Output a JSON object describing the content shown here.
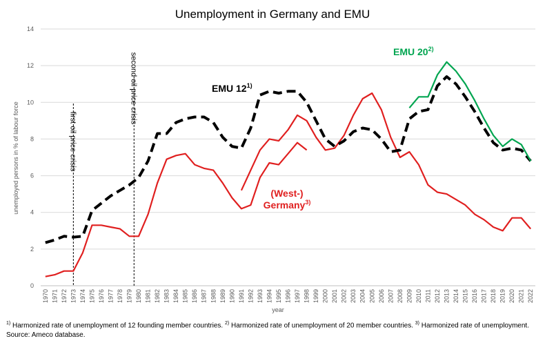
{
  "chart_data": {
    "type": "line",
    "title": "Unemployment in Germany and EMU",
    "xlabel": "year",
    "ylabel": "unemployed persons in % of labour force",
    "xlim": [
      1970,
      2022
    ],
    "ylim": [
      0,
      14
    ],
    "yticks": [
      "0",
      "2",
      "4",
      "6",
      "8",
      "10",
      "12",
      "14"
    ],
    "grid": true,
    "series": [
      {
        "name": "EMU 12",
        "color": "#000000",
        "style": "dashed",
        "x": [
          1970,
          1971,
          1972,
          1973,
          1974,
          1975,
          1976,
          1977,
          1978,
          1979,
          1980,
          1981,
          1982,
          1983,
          1984,
          1985,
          1986,
          1987,
          1988,
          1989,
          1990,
          1991,
          1992,
          1993,
          1994,
          1995,
          1996,
          1997,
          1998,
          1999,
          2000,
          2001,
          2002,
          2003,
          2004,
          2005,
          2006,
          2007,
          2008,
          2009,
          2010,
          2011,
          2012,
          2013,
          2014,
          2015,
          2016,
          2017,
          2018,
          2019,
          2020,
          2021,
          2022
        ],
        "values": [
          2.35,
          2.5,
          2.7,
          2.65,
          2.7,
          4.1,
          4.5,
          4.9,
          5.2,
          5.5,
          5.9,
          6.8,
          8.3,
          8.3,
          8.9,
          9.1,
          9.2,
          9.2,
          8.9,
          8.1,
          7.6,
          7.5,
          8.6,
          10.4,
          10.6,
          10.5,
          10.6,
          10.6,
          10.0,
          9.0,
          8.0,
          7.6,
          7.9,
          8.4,
          8.6,
          8.5,
          8.0,
          7.3,
          7.4,
          9.1,
          9.5,
          9.6,
          10.9,
          11.4,
          11.0,
          10.3,
          9.5,
          8.6,
          7.8,
          7.4,
          7.5,
          7.4,
          6.8
        ]
      },
      {
        "name": "EMU 20",
        "color": "#00a550",
        "style": "solid",
        "x": [
          2009,
          2010,
          2011,
          2012,
          2013,
          2014,
          2015,
          2016,
          2017,
          2018,
          2019,
          2020,
          2021,
          2022
        ],
        "values": [
          9.7,
          10.3,
          10.3,
          11.5,
          12.2,
          11.7,
          11.0,
          10.1,
          9.1,
          8.2,
          7.6,
          8.0,
          7.7,
          6.8
        ]
      },
      {
        "name": "(West-) Germany",
        "color": "#e01f1f",
        "style": "solid",
        "x": [
          1970,
          1971,
          1972,
          1973,
          1974,
          1975,
          1976,
          1977,
          1978,
          1979,
          1980,
          1981,
          1982,
          1983,
          1984,
          1985,
          1986,
          1987,
          1988,
          1989,
          1990,
          1991,
          1992,
          1993,
          1994,
          1995,
          1996,
          1997,
          1998
        ],
        "values": [
          0.5,
          0.6,
          0.8,
          0.8,
          1.8,
          3.3,
          3.3,
          3.2,
          3.1,
          2.7,
          2.7,
          3.9,
          5.6,
          6.9,
          7.1,
          7.2,
          6.6,
          6.4,
          6.3,
          5.6,
          4.8,
          4.2,
          4.4,
          5.9,
          6.7,
          6.6,
          7.2,
          7.8,
          7.4
        ]
      },
      {
        "name": "Germany",
        "color": "#e01f1f",
        "style": "solid",
        "x": [
          1991,
          1992,
          1993,
          1994,
          1995,
          1996,
          1997,
          1998,
          1999,
          2000,
          2001,
          2002,
          2003,
          2004,
          2005,
          2006,
          2007,
          2008,
          2009,
          2010,
          2011,
          2012,
          2013,
          2014,
          2015,
          2016,
          2017,
          2018,
          2019,
          2020,
          2021,
          2022
        ],
        "values": [
          5.2,
          6.3,
          7.4,
          8.0,
          7.9,
          8.5,
          9.3,
          9.0,
          8.1,
          7.4,
          7.5,
          8.2,
          9.3,
          10.2,
          10.5,
          9.6,
          8.1,
          7.0,
          7.3,
          6.6,
          5.5,
          5.1,
          5.0,
          4.7,
          4.4,
          3.9,
          3.6,
          3.2,
          3.0,
          3.7,
          3.7,
          3.1
        ]
      }
    ],
    "series_labels": [
      {
        "series": "EMU 12",
        "text": "EMU 12",
        "sup": "1)",
        "color": "#000000"
      },
      {
        "series": "EMU 20",
        "text": "EMU 20",
        "sup": "2)",
        "color": "#00a550"
      },
      {
        "series": "(West-) Germany",
        "text": "(West-)",
        "color": "#e01f1f"
      },
      {
        "series": "Germany",
        "text": "Germany",
        "sup": "3)",
        "color": "#e01f1f"
      }
    ],
    "annotations": [
      {
        "text": "first oil price crisis",
        "x": 1973
      },
      {
        "text": "second oil price crisis",
        "x": 1979.5
      }
    ]
  },
  "footnotes": {
    "n1_mark": "1)",
    "n1_text": "Harmonized rate of unemployment of 12 founding member countries.",
    "n2_mark": "2)",
    "n2_text": "Harmonized rate of unemployment of  20 member countries.",
    "n3_mark": "3)",
    "n3_text": "Harmonized rate of unemployment.",
    "source": "Source: Ameco database."
  }
}
